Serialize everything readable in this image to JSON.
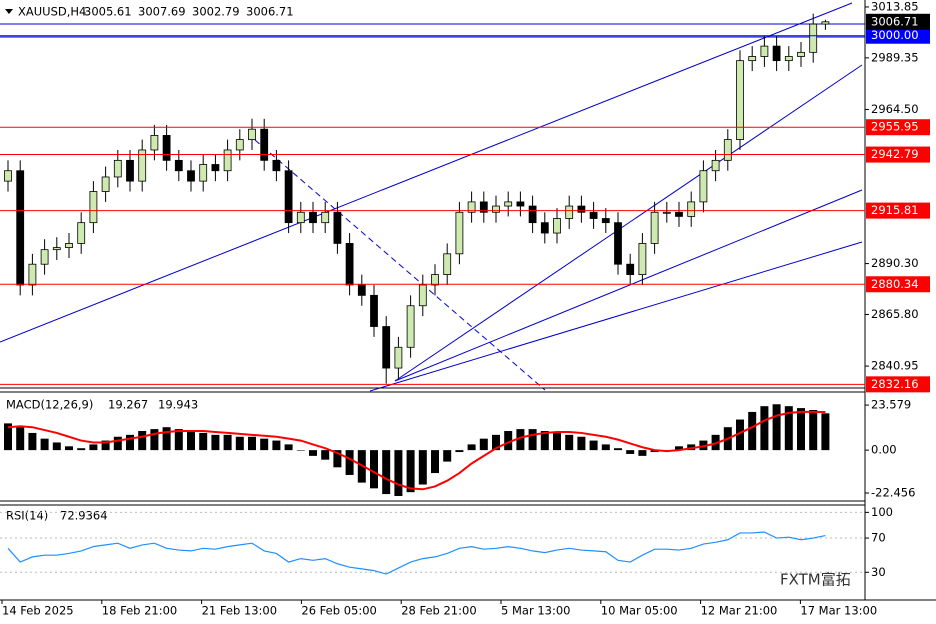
{
  "header": {
    "symbol": "XAUUSD,H4",
    "open": 3005.61,
    "high": 3007.69,
    "low": 3002.79,
    "close": 3006.71
  },
  "chart_data": [
    {
      "type": "candlestick",
      "open": [
        2930,
        2935,
        2880,
        2890,
        2897,
        2898,
        2900,
        2910,
        2925,
        2932,
        2940,
        2930,
        2945,
        2952,
        2940,
        2935,
        2930,
        2938,
        2935,
        2945,
        2950,
        2955,
        2940,
        2935,
        2910,
        2915,
        2910,
        2915,
        2900,
        2880,
        2875,
        2860,
        2840,
        2850,
        2870,
        2880,
        2885,
        2895,
        2915,
        2920,
        2915,
        2918,
        2920,
        2918,
        2910,
        2905,
        2912,
        2918,
        2915,
        2912,
        2910,
        2890,
        2885,
        2900,
        2915,
        2915,
        2913,
        2920,
        2935,
        2940,
        2950,
        2988,
        2990,
        2995,
        2988,
        2990,
        2992,
        3005.61
      ],
      "high": [
        2940,
        2940,
        2895,
        2902,
        2903,
        2905,
        2915,
        2930,
        2937,
        2945,
        2945,
        2950,
        2957,
        2957,
        2945,
        2940,
        2943,
        2943,
        2950,
        2955,
        2960,
        2960,
        2945,
        2940,
        2920,
        2920,
        2920,
        2920,
        2905,
        2885,
        2880,
        2865,
        2855,
        2875,
        2885,
        2890,
        2900,
        2920,
        2925,
        2925,
        2923,
        2925,
        2925,
        2923,
        2915,
        2917,
        2923,
        2923,
        2920,
        2917,
        2915,
        2895,
        2905,
        2920,
        2920,
        2920,
        2925,
        2940,
        2945,
        2955,
        2993,
        2995,
        3000,
        3000,
        2995,
        2997,
        3010.61,
        3007.69
      ],
      "low": [
        2925,
        2875,
        2875,
        2885,
        2892,
        2893,
        2895,
        2905,
        2920,
        2927,
        2925,
        2925,
        2940,
        2935,
        2930,
        2925,
        2925,
        2930,
        2930,
        2940,
        2945,
        2935,
        2930,
        2905,
        2905,
        2905,
        2905,
        2895,
        2875,
        2870,
        2855,
        2832.5,
        2835,
        2845,
        2865,
        2875,
        2880,
        2890,
        2910,
        2910,
        2910,
        2913,
        2913,
        2905,
        2900,
        2900,
        2907,
        2910,
        2907,
        2905,
        2885,
        2880,
        2880,
        2895,
        2910,
        2908,
        2908,
        2915,
        2930,
        2935,
        2945,
        2983,
        2985,
        2983,
        2983,
        2985,
        2987,
        3002.79
      ],
      "close": [
        2935,
        2880,
        2890,
        2897,
        2898,
        2900,
        2910,
        2925,
        2932,
        2940,
        2930,
        2945,
        2952,
        2940,
        2935,
        2930,
        2938,
        2935,
        2945,
        2950,
        2955,
        2940,
        2935,
        2910,
        2915,
        2910,
        2915,
        2900,
        2880,
        2875,
        2860,
        2840,
        2850,
        2870,
        2880,
        2885,
        2895,
        2915,
        2920,
        2915,
        2918,
        2920,
        2918,
        2910,
        2905,
        2912,
        2918,
        2915,
        2912,
        2910,
        2890,
        2885,
        2900,
        2915,
        2915,
        2913,
        2920,
        2935,
        2940,
        2950,
        2988,
        2990,
        2995,
        2988,
        2990,
        2992,
        3005.61,
        3006.71
      ],
      "bull_color": "#cfeab0",
      "bear_color": "#000000",
      "ylim": [
        2830.4,
        3017.2
      ],
      "yticks": [
        3013.85,
        2989.35,
        {
          "value": 2964.5,
          "label": "2964.50"
        },
        {
          "value": 2890.3,
          "label": "2890.30"
        },
        {
          "value": 2865.8,
          "label": "2865.80"
        },
        2840.95
      ],
      "levels": [
        {
          "value": 3000,
          "label": "3000.00",
          "color": "#0000ff"
        },
        {
          "value": 2955.95,
          "color": "#ff0000"
        },
        {
          "value": 2942.79,
          "color": "#ff0000"
        },
        {
          "value": 2915.81,
          "color": "#ff0000"
        },
        {
          "value": 2880.34,
          "color": "#ff0000"
        },
        {
          "value": 2832.16,
          "color": "#ff0000"
        }
      ],
      "last_price": 3006.71,
      "x_labels": [
        "14 Feb 2025",
        "18 Feb 21:00",
        "21 Feb 13:00",
        "26 Feb 05:00",
        "28 Feb 21:00",
        "5 Mar 13:00",
        "10 Mar 05:00",
        "12 Mar 21:00",
        "17 Mar 13:00"
      ]
    },
    {
      "type": "macd",
      "label": "MACD(12,26,9)",
      "macd": 19.267,
      "signal_value": 19.943,
      "histogram": [
        14,
        12,
        9,
        6,
        4,
        2,
        1,
        3,
        5,
        7,
        8,
        10,
        11,
        12,
        11,
        10,
        9,
        8,
        8,
        7,
        7,
        6,
        5,
        3,
        0,
        -3,
        -5,
        -9,
        -13,
        -17,
        -20,
        -23,
        -24,
        -22,
        -18,
        -12,
        -6,
        -1,
        3,
        6,
        8,
        10,
        11,
        11,
        10,
        9,
        8,
        7,
        5,
        3,
        1,
        -2,
        -3,
        -1,
        0,
        2,
        3,
        5,
        8,
        12,
        16,
        20,
        23,
        24,
        23,
        22,
        21,
        19.267
      ],
      "signal": [
        12,
        12.5,
        12,
        10.5,
        9,
        7,
        5,
        4,
        4,
        5,
        6,
        7,
        8.5,
        9.5,
        10,
        10,
        10,
        9.5,
        9,
        8.5,
        8,
        7.5,
        7,
        6,
        5,
        3,
        1,
        -1.5,
        -4.5,
        -8,
        -11.5,
        -15,
        -18,
        -20,
        -20.5,
        -19,
        -16,
        -12,
        -7,
        -3,
        1,
        4,
        6.5,
        8,
        9,
        9.5,
        9.5,
        9,
        8,
        7,
        5.5,
        3.5,
        1.5,
        0,
        -0.5,
        0,
        1,
        2,
        3.5,
        6,
        9,
        12,
        15.5,
        18,
        19.5,
        20,
        20,
        19.943
      ],
      "ylim": [
        -26.1,
        29.9
      ],
      "yticks": [
        23.579,
        {
          "value": 0,
          "label": "0.00"
        },
        -22.456
      ],
      "histogram_color": "#000000",
      "signal_color": "#ff0000"
    },
    {
      "type": "rsi",
      "label": "RSI(14)",
      "value": 72.9364,
      "values": [
        58,
        42,
        48,
        50,
        50,
        52,
        55,
        60,
        62,
        64,
        58,
        62,
        64,
        58,
        56,
        55,
        58,
        57,
        60,
        62,
        64,
        55,
        52,
        42,
        46,
        44,
        46,
        40,
        36,
        34,
        32,
        28,
        35,
        42,
        46,
        48,
        52,
        58,
        60,
        57,
        58,
        60,
        58,
        55,
        53,
        56,
        58,
        56,
        55,
        54,
        44,
        42,
        50,
        57,
        57,
        56,
        58,
        63,
        65,
        68,
        76,
        76,
        77,
        70,
        71,
        68,
        70,
        72.9364
      ],
      "ylim": [
        0,
        108.6
      ],
      "yticks": [
        100,
        70,
        30
      ],
      "color": "#1e90ff"
    }
  ],
  "watermark": "FXTM富拓"
}
